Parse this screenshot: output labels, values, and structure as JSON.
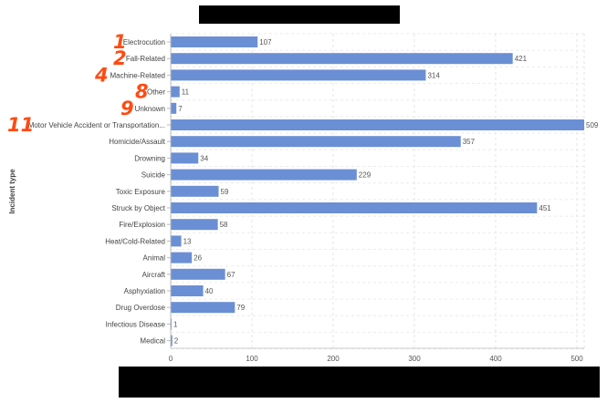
{
  "chart_data": {
    "type": "bar",
    "orientation": "horizontal",
    "title": "",
    "xlabel": "",
    "ylabel": "Incident type",
    "xlim": [
      0,
      500
    ],
    "xticks": [
      "0",
      "100",
      "200",
      "300",
      "400",
      "500"
    ],
    "grid": true,
    "bar_color": "#6b8fd4",
    "categories": [
      "Electrocution",
      "Fall-Related",
      "Machine-Related",
      "Other",
      "Unknown",
      "Motor Vehicle Accident or Transportation...",
      "Homicide/Assault",
      "Drowning",
      "Suicide",
      "Toxic Exposure",
      "Struck by Object",
      "Fire/Explosion",
      "Heat/Cold-Related",
      "Animal",
      "Aircraft",
      "Asphyxiation",
      "Drug Overdose",
      "Infectious Disease",
      "Medical"
    ],
    "values": [
      107,
      421,
      314,
      11,
      7,
      509,
      357,
      34,
      229,
      59,
      451,
      58,
      13,
      26,
      67,
      40,
      79,
      1,
      2
    ],
    "value_labels": [
      "107",
      "421",
      "314",
      "11",
      "7",
      "509",
      "357",
      "34",
      "229",
      "59",
      "451",
      "58",
      "13",
      "26",
      "67",
      "40",
      "79",
      "1",
      "2"
    ],
    "annotations": [
      {
        "text": "1",
        "row": 0
      },
      {
        "text": "2",
        "row": 1
      },
      {
        "text": "4",
        "row": 2
      },
      {
        "text": "8",
        "row": 3
      },
      {
        "text": "9",
        "row": 4
      },
      {
        "text": "11",
        "row": 5
      }
    ],
    "annotation_color": "#ff4b12"
  }
}
